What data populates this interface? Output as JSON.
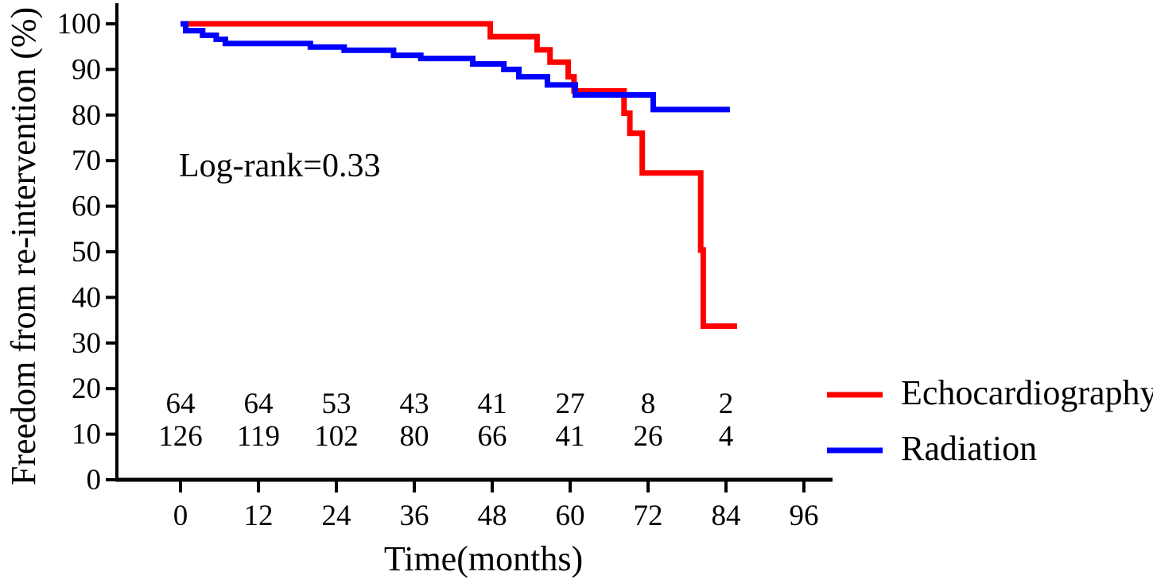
{
  "chart_data": {
    "type": "line",
    "subtype": "kaplan-meier-step",
    "title": "",
    "xlabel": "Time(months)",
    "ylabel": "Freedom from re-intervention (%)",
    "annotation": "Log-rank=0.33",
    "xlim": [
      0,
      100
    ],
    "ylim": [
      0,
      100
    ],
    "x_ticks": [
      0,
      12,
      24,
      36,
      48,
      60,
      72,
      84,
      96
    ],
    "y_ticks": [
      0,
      10,
      20,
      30,
      40,
      50,
      60,
      70,
      80,
      90,
      100
    ],
    "grid": false,
    "legend_position": "right-bottom",
    "series": [
      {
        "name": "Echocardiography",
        "color": "#ff0000",
        "steps": [
          [
            0,
            100
          ],
          [
            47.7,
            97.2
          ],
          [
            54.9,
            94.3
          ],
          [
            56.9,
            91.6
          ],
          [
            59.7,
            88.4
          ],
          [
            60.6,
            85.3
          ],
          [
            68.3,
            80.4
          ],
          [
            69.2,
            76.0
          ],
          [
            71.1,
            67.3
          ],
          [
            80.1,
            50.4
          ],
          [
            80.5,
            33.7
          ]
        ],
        "end_x": 85.7
      },
      {
        "name": "Radiation",
        "color": "#0000ff",
        "steps": [
          [
            0,
            100
          ],
          [
            0.8,
            98.5
          ],
          [
            3.4,
            97.5
          ],
          [
            5.5,
            96.6
          ],
          [
            6.9,
            95.7
          ],
          [
            20,
            94.9
          ],
          [
            25.2,
            94.2
          ],
          [
            32.8,
            93.1
          ],
          [
            37,
            92.4
          ],
          [
            45,
            91.2
          ],
          [
            49.8,
            90.0
          ],
          [
            52.1,
            88.4
          ],
          [
            56.5,
            86.6
          ],
          [
            60.8,
            84.4
          ],
          [
            72.8,
            81.2
          ]
        ],
        "end_x": 84.6
      }
    ],
    "numbers_at_risk": {
      "times": [
        0,
        12,
        24,
        36,
        48,
        60,
        72,
        84
      ],
      "rows": [
        {
          "series": "Echocardiography",
          "values": [
            "64",
            "64",
            "53",
            "43",
            "41",
            "27",
            "8",
            "2"
          ]
        },
        {
          "series": "Radiation",
          "values": [
            "126",
            "119",
            "102",
            "80",
            "66",
            "41",
            "26",
            "4"
          ]
        }
      ]
    }
  },
  "colors": {
    "echocardiography": "#ff0000",
    "radiation": "#0000ff",
    "axis": "#000000",
    "background": "#ffffff"
  }
}
